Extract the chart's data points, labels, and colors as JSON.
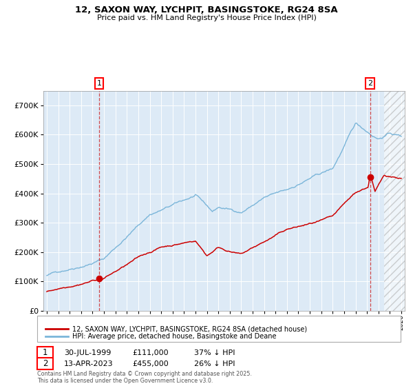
{
  "title1": "12, SAXON WAY, LYCHPIT, BASINGSTOKE, RG24 8SA",
  "title2": "Price paid vs. HM Land Registry's House Price Index (HPI)",
  "ylim": [
    0,
    750000
  ],
  "yticks": [
    0,
    100000,
    200000,
    300000,
    400000,
    500000,
    600000,
    700000
  ],
  "ytick_labels": [
    "£0",
    "£100K",
    "£200K",
    "£300K",
    "£400K",
    "£500K",
    "£600K",
    "£700K"
  ],
  "hpi_color": "#7ab5d9",
  "price_color": "#cc0000",
  "bg_color": "#ddeaf6",
  "grid_color": "#ffffff",
  "annotation1_date": 1999.58,
  "annotation1_price": 111000,
  "annotation1_label": "30-JUL-1999",
  "annotation1_value": "£111,000",
  "annotation1_pct": "37% ↓ HPI",
  "annotation2_date": 2023.28,
  "annotation2_price": 455000,
  "annotation2_label": "13-APR-2023",
  "annotation2_value": "£455,000",
  "annotation2_pct": "26% ↓ HPI",
  "legend_line1": "12, SAXON WAY, LYCHPIT, BASINGSTOKE, RG24 8SA (detached house)",
  "legend_line2": "HPI: Average price, detached house, Basingstoke and Deane",
  "footer": "Contains HM Land Registry data © Crown copyright and database right 2025.\nThis data is licensed under the Open Government Licence v3.0."
}
